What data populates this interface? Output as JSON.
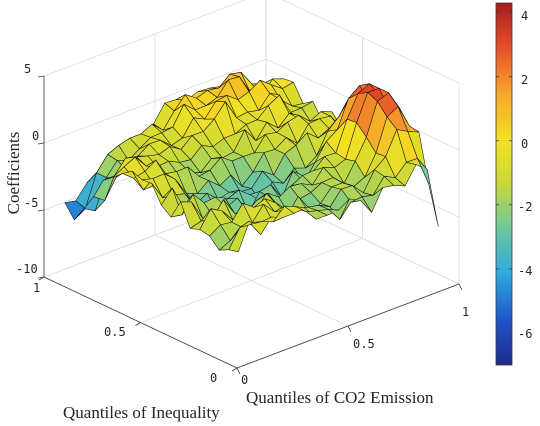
{
  "chart_data": {
    "type": "surface",
    "title": "",
    "xlabel": "Quantiles of CO2 Emission",
    "ylabel": "Quantiles of Inequality",
    "zlabel": "Coefficients",
    "xlim": [
      0,
      1
    ],
    "ylim": [
      0,
      1
    ],
    "zlim": [
      -10,
      5
    ],
    "x_ticks": [
      "0",
      "0.5",
      "1"
    ],
    "y_ticks": [
      "0",
      "0.5",
      "1"
    ],
    "z_ticks": [
      "5",
      "0",
      "-5",
      "-10"
    ],
    "grid": true,
    "colormap": "parula-jet",
    "colorbar": {
      "range": [
        -7,
        4.3
      ],
      "ticks": [
        "4",
        "2",
        "0",
        "-2",
        "-4",
        "-6"
      ],
      "colors": [
        "#1f2a8c",
        "#1f55c8",
        "#2ea8e0",
        "#6cc7a0",
        "#c8d93a",
        "#f3e023",
        "#f6a62a",
        "#e8502a",
        "#a31c1c"
      ]
    },
    "grid_size": 19,
    "x": [
      0.05,
      0.1,
      0.15,
      0.2,
      0.25,
      0.3,
      0.35,
      0.4,
      0.45,
      0.5,
      0.55,
      0.6,
      0.65,
      0.7,
      0.75,
      0.8,
      0.85,
      0.9,
      0.95
    ],
    "y": [
      0.05,
      0.1,
      0.15,
      0.2,
      0.25,
      0.3,
      0.35,
      0.4,
      0.45,
      0.5,
      0.55,
      0.6,
      0.65,
      0.7,
      0.75,
      0.8,
      0.85,
      0.9,
      0.95
    ],
    "surface_description": "Coefficients mostly between -3 and 1; low values near -5.5 at low CO2 quantiles and high inequality quantiles; peak near 2.5 around CO2 quantile 0.9 and inequality 0.3; sharp drop toward -8 at the highest CO2 quantile and lowest inequality quantile."
  }
}
